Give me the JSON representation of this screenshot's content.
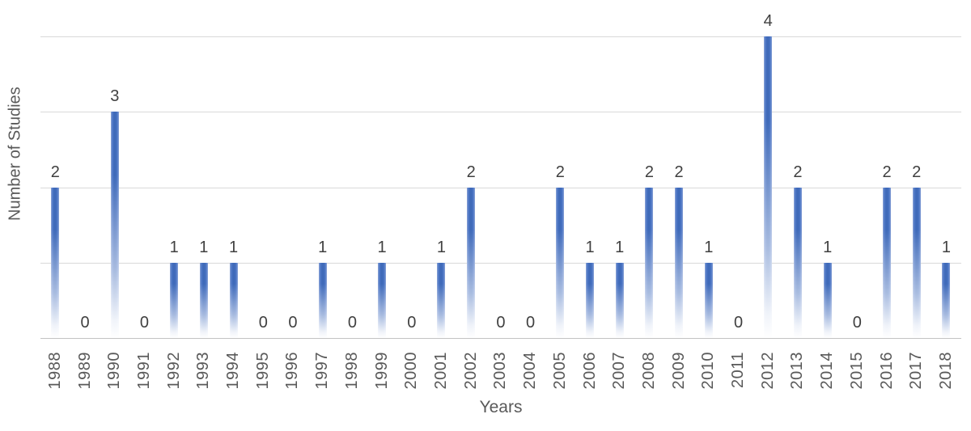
{
  "chart_data": {
    "type": "bar",
    "title": "",
    "xlabel": "Years",
    "ylabel": "Number of Studies",
    "categories": [
      "1988",
      "1989",
      "1990",
      "1991",
      "1992",
      "1993",
      "1994",
      "1995",
      "1996",
      "1997",
      "1998",
      "1999",
      "2000",
      "2001",
      "2002",
      "2003",
      "2004",
      "2005",
      "2006",
      "2007",
      "2008",
      "2009",
      "2010",
      "2011",
      "2012",
      "2013",
      "2014",
      "2015",
      "2016",
      "2017",
      "2018"
    ],
    "values": [
      2,
      0,
      3,
      0,
      1,
      1,
      1,
      0,
      0,
      1,
      0,
      1,
      0,
      1,
      2,
      0,
      0,
      2,
      1,
      1,
      2,
      2,
      1,
      0,
      4,
      2,
      1,
      0,
      2,
      2,
      1
    ],
    "data_labels_visible": true,
    "ylim": [
      0,
      4
    ],
    "gridline_values": [
      1,
      2,
      3,
      4
    ],
    "grid_on": true,
    "legend": "none",
    "bar_color": "#4472c4",
    "bar_edge_color": "#8aa3d6",
    "bar_gradient_fade_to": "#ffffff",
    "data_label_color": "#404040",
    "axis_text_color": "#595959",
    "gridline_color": "#d9d9d9",
    "axis_line_color": "#c3c3c3"
  }
}
